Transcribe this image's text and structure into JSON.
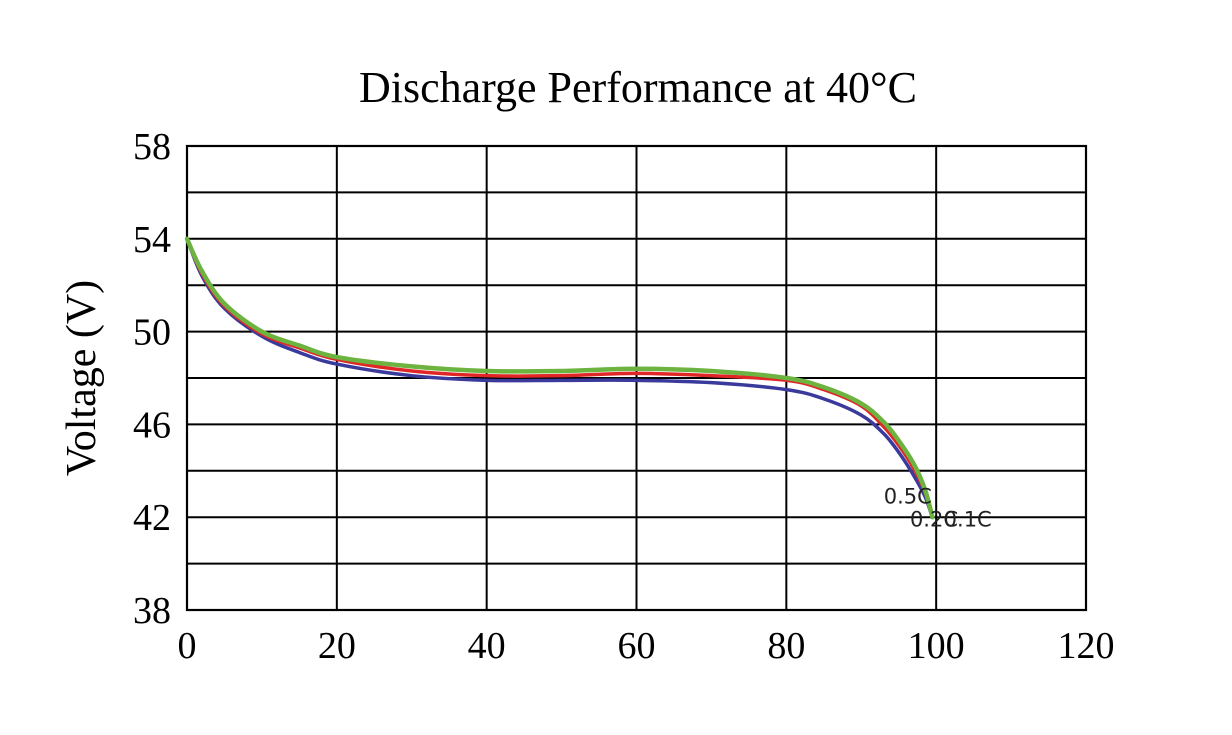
{
  "chart_data": {
    "type": "line",
    "title": "Discharge Performance at 40°C",
    "xlabel": "",
    "ylabel": "Voltage (V)",
    "xlim": [
      0,
      120
    ],
    "ylim": [
      38,
      58
    ],
    "x_ticks": [
      "0",
      "20",
      "40",
      "60",
      "80",
      "100",
      "120"
    ],
    "y_ticks": [
      "58",
      "54",
      "50",
      "46",
      "42",
      "38"
    ],
    "x_tick_values": [
      0,
      20,
      40,
      60,
      80,
      100,
      120
    ],
    "y_tick_values": [
      58,
      54,
      50,
      46,
      42,
      38
    ],
    "x_grid": [
      0,
      20,
      40,
      60,
      80,
      100,
      120
    ],
    "y_grid": [
      38,
      40,
      42,
      44,
      46,
      48,
      50,
      52,
      54,
      56,
      58
    ],
    "grid": true,
    "series": [
      {
        "name": "0.5C",
        "color": "#3a3a9c",
        "points": [
          [
            0,
            54
          ],
          [
            2,
            52.4
          ],
          [
            5,
            51.0
          ],
          [
            10,
            49.8
          ],
          [
            15,
            49.1
          ],
          [
            20,
            48.6
          ],
          [
            30,
            48.1
          ],
          [
            40,
            47.9
          ],
          [
            50,
            47.9
          ],
          [
            60,
            47.9
          ],
          [
            70,
            47.8
          ],
          [
            80,
            47.5
          ],
          [
            85,
            47.1
          ],
          [
            90,
            46.4
          ],
          [
            93,
            45.6
          ],
          [
            95,
            44.8
          ],
          [
            97,
            43.8
          ],
          [
            98.5,
            42.9
          ],
          [
            99.5,
            42
          ]
        ]
      },
      {
        "name": "0.2C",
        "color": "#e02626",
        "points": [
          [
            0,
            54
          ],
          [
            2,
            52.5
          ],
          [
            5,
            51.1
          ],
          [
            10,
            49.9
          ],
          [
            15,
            49.3
          ],
          [
            20,
            48.8
          ],
          [
            30,
            48.3
          ],
          [
            40,
            48.1
          ],
          [
            50,
            48.1
          ],
          [
            60,
            48.2
          ],
          [
            70,
            48.1
          ],
          [
            80,
            47.9
          ],
          [
            85,
            47.5
          ],
          [
            90,
            46.8
          ],
          [
            93,
            45.9
          ],
          [
            95,
            45.1
          ],
          [
            97,
            44.1
          ],
          [
            98.5,
            43.1
          ],
          [
            99.5,
            42
          ]
        ]
      },
      {
        "name": "0.1C",
        "color": "#6cb33f",
        "points": [
          [
            0,
            54
          ],
          [
            2,
            52.6
          ],
          [
            5,
            51.2
          ],
          [
            10,
            50.0
          ],
          [
            15,
            49.4
          ],
          [
            20,
            48.9
          ],
          [
            30,
            48.5
          ],
          [
            40,
            48.3
          ],
          [
            50,
            48.3
          ],
          [
            60,
            48.4
          ],
          [
            70,
            48.3
          ],
          [
            80,
            48.0
          ],
          [
            85,
            47.6
          ],
          [
            90,
            46.9
          ],
          [
            93,
            46.1
          ],
          [
            95,
            45.3
          ],
          [
            97,
            44.3
          ],
          [
            98.5,
            43.2
          ],
          [
            99.5,
            42
          ]
        ]
      }
    ],
    "annotations": [
      {
        "text": "0.5C",
        "x": 93,
        "y": 42.6
      },
      {
        "text": "0.2C",
        "x": 96.5,
        "y": 41.6
      },
      {
        "text": "0.1C",
        "x": 101,
        "y": 41.6
      }
    ]
  }
}
